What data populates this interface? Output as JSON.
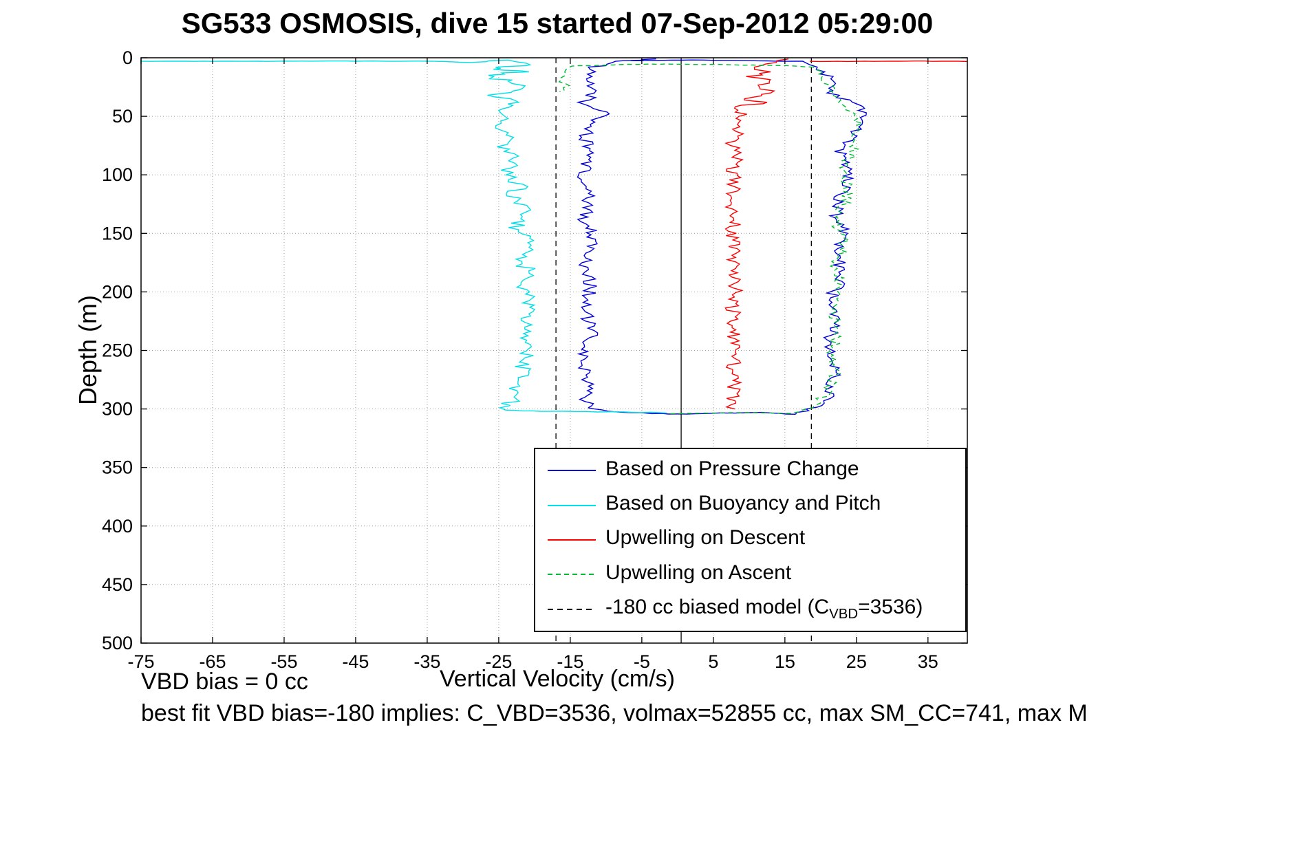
{
  "chart_data": {
    "type": "line",
    "title": "SG533 OSMOSIS, dive 15 started 07-Sep-2012 05:29:00",
    "xlabel": "Vertical Velocity (cm/s)",
    "ylabel": "Depth (m)",
    "xlim": [
      -75,
      40.5
    ],
    "ylim": [
      0,
      500
    ],
    "y_inverted": true,
    "grid": "dotted",
    "x_ticks": [
      -75,
      -65,
      -55,
      -45,
      -35,
      -25,
      -15,
      -5,
      5,
      15,
      25,
      35
    ],
    "y_ticks": [
      0,
      50,
      100,
      150,
      200,
      250,
      300,
      350,
      400,
      450,
      500
    ],
    "legend_position": "bottom-right-inside",
    "annotations": {
      "vbd_bias": "VBD bias = 0 cc",
      "best_fit": "best fit VBD bias=-180 implies: C_VBD=3536, volmax=52855 cc, max SM_CC=741, max M"
    },
    "reference_lines": [
      {
        "name": "zero-velocity-line",
        "x": 0.5,
        "style": "solid",
        "color": "#000000",
        "label": ""
      },
      {
        "name": "biased-model-descent-line",
        "x": -17.0,
        "style": "dashed",
        "color": "#000000",
        "label": "-180 cc biased model (C_VBD=3536)"
      },
      {
        "name": "biased-model-ascent-line",
        "x": 18.7,
        "style": "dashed",
        "color": "#000000",
        "label": "-180 cc biased model (C_VBD=3536)"
      }
    ],
    "series": [
      {
        "id": "pressure",
        "name": "Based on Pressure Change",
        "color": "#0000dd",
        "dash": "",
        "units": "points are [velocity_cm_s, depth_m] control vertices",
        "segments": [
          {
            "noise_v": 1.0,
            "noise_d": 0,
            "points": [
              [
                -3,
                1
              ],
              [
                -8,
                3
              ],
              [
                -12,
                8
              ],
              [
                -13,
                18
              ],
              [
                -11.5,
                30
              ],
              [
                -13.5,
                40
              ],
              [
                -9.5,
                48
              ],
              [
                -12,
                55
              ],
              [
                -13,
                70
              ],
              [
                -12,
                85
              ],
              [
                -13.5,
                100
              ],
              [
                -12.5,
                120
              ],
              [
                -13,
                140
              ],
              [
                -11.5,
                155
              ],
              [
                -13,
                175
              ],
              [
                -12,
                195
              ],
              [
                -13,
                215
              ],
              [
                -12,
                235
              ],
              [
                -13.5,
                255
              ],
              [
                -12.5,
                275
              ],
              [
                -13,
                290
              ],
              [
                -12.5,
                299
              ]
            ]
          },
          {
            "noise_v": 0.3,
            "noise_d": 0.3,
            "points": [
              [
                -12.5,
                299
              ],
              [
                -10,
                302
              ],
              [
                -5,
                303.5
              ],
              [
                0,
                304.3
              ],
              [
                6,
                303.6
              ],
              [
                12,
                303.2
              ],
              [
                16.5,
                304.5
              ]
            ]
          },
          {
            "noise_v": 1.0,
            "noise_d": 0,
            "points": [
              [
                16.5,
                304.5
              ],
              [
                20,
                297
              ],
              [
                21.5,
                285
              ],
              [
                22,
                265
              ],
              [
                21,
                245
              ],
              [
                22.5,
                225
              ],
              [
                21.5,
                205
              ],
              [
                23,
                185
              ],
              [
                22,
                165
              ],
              [
                23.5,
                150
              ],
              [
                22,
                135
              ],
              [
                23,
                115
              ],
              [
                24,
                95
              ],
              [
                22.5,
                80
              ],
              [
                24.5,
                65
              ],
              [
                25,
                55
              ],
              [
                26,
                45
              ],
              [
                24,
                38
              ],
              [
                21.5,
                30
              ],
              [
                22,
                20
              ],
              [
                20.5,
                12
              ],
              [
                18.5,
                6
              ]
            ]
          },
          {
            "noise_v": 0.2,
            "noise_d": 0.15,
            "points": [
              [
                18.5,
                6
              ],
              [
                17.5,
                3
              ],
              [
                10,
                2.5
              ],
              [
                2,
                2
              ],
              [
                -2,
                2.2
              ],
              [
                -6.5,
                2.5
              ]
            ]
          }
        ]
      },
      {
        "id": "buoyancy",
        "name": "Based on Buoyancy and Pitch",
        "color": "#00e0e8",
        "dash": "",
        "segments": [
          {
            "noise_v": 0,
            "noise_d": 0.12,
            "points": [
              [
                -75,
                3
              ],
              [
                -60,
                3
              ],
              [
                -45,
                2.8
              ],
              [
                -34,
                3
              ]
            ]
          },
          {
            "noise_v": 1.3,
            "noise_d": 0,
            "points": [
              [
                -34,
                3
              ],
              [
                -28,
                4
              ],
              [
                -24,
                2
              ],
              [
                -21,
                6
              ],
              [
                -26,
                9
              ],
              [
                -22,
                12
              ],
              [
                -27,
                16
              ],
              [
                -23,
                20
              ],
              [
                -21,
                26
              ],
              [
                -25.5,
                32
              ],
              [
                -22,
                38
              ],
              [
                -26,
                45
              ],
              [
                -23.5,
                52
              ],
              [
                -25,
                60
              ],
              [
                -23,
                68
              ],
              [
                -24.5,
                78
              ],
              [
                -22.5,
                88
              ],
              [
                -24,
                98
              ],
              [
                -22,
                108
              ],
              [
                -23,
                120
              ],
              [
                -21.5,
                132
              ],
              [
                -22.5,
                145
              ],
              [
                -21,
                158
              ],
              [
                -22,
                172
              ],
              [
                -20.5,
                186
              ],
              [
                -21.5,
                200
              ],
              [
                -20.5,
                215
              ],
              [
                -21.5,
                230
              ],
              [
                -20.5,
                245
              ],
              [
                -21.5,
                260
              ],
              [
                -22,
                275
              ],
              [
                -23,
                288
              ],
              [
                -23.5,
                297
              ],
              [
                -24,
                301
              ]
            ]
          },
          {
            "noise_v": 0.2,
            "noise_d": 0.25,
            "points": [
              [
                -24,
                301
              ],
              [
                -18,
                302
              ],
              [
                -10,
                302.5
              ],
              [
                -4,
                303
              ],
              [
                -1.5,
                303.5
              ]
            ]
          }
        ]
      },
      {
        "id": "descent-upwelling",
        "name": "Upwelling on Descent",
        "color": "#ff0000",
        "dash": "",
        "segments": [
          {
            "noise_v": 1.1,
            "noise_d": 0,
            "points": [
              [
                15.5,
                1
              ],
              [
                14,
                4
              ],
              [
                11,
                8
              ],
              [
                12.5,
                12
              ],
              [
                10,
                16
              ],
              [
                13,
                20
              ],
              [
                10.5,
                25
              ],
              [
                13.5,
                30
              ],
              [
                9,
                35
              ],
              [
                12,
                38
              ],
              [
                8,
                43
              ],
              [
                9.5,
                50
              ],
              [
                7.5,
                57
              ],
              [
                8.5,
                65
              ],
              [
                7.5,
                75
              ],
              [
                8.5,
                85
              ],
              [
                7.5,
                95
              ],
              [
                8,
                108
              ],
              [
                7.3,
                120
              ],
              [
                8.2,
                135
              ],
              [
                7.5,
                150
              ],
              [
                8,
                165
              ],
              [
                7.4,
                180
              ],
              [
                8.2,
                195
              ],
              [
                7.5,
                210
              ],
              [
                8,
                225
              ],
              [
                7.5,
                240
              ],
              [
                8.2,
                255
              ],
              [
                7.6,
                270
              ],
              [
                8,
                285
              ],
              [
                7.8,
                295
              ],
              [
                8,
                300
              ]
            ]
          },
          {
            "noise_v": 0,
            "noise_d": 0.2,
            "points": [
              [
                18.5,
                3
              ],
              [
                25,
                3
              ],
              [
                32,
                2.8
              ],
              [
                40.5,
                3.2
              ]
            ]
          }
        ]
      },
      {
        "id": "ascent-upwelling",
        "name": "Upwelling on Ascent",
        "color": "#00bb33",
        "dash": "7 5",
        "segments": [
          {
            "noise_v": 0.9,
            "noise_d": 0,
            "points": [
              [
                -1,
                304
              ],
              [
                4,
                303.5
              ],
              [
                10,
                303
              ],
              [
                15,
                303.8
              ],
              [
                17.5,
                301
              ],
              [
                19.5,
                295
              ],
              [
                21,
                285
              ],
              [
                22,
                268
              ],
              [
                21.5,
                250
              ],
              [
                22.5,
                232
              ],
              [
                21.5,
                214
              ],
              [
                23,
                196
              ],
              [
                22,
                178
              ],
              [
                23.5,
                160
              ],
              [
                22.5,
                144
              ],
              [
                23,
                128
              ],
              [
                24,
                110
              ],
              [
                23,
                96
              ],
              [
                24.5,
                82
              ],
              [
                25,
                68
              ],
              [
                25.5,
                56
              ],
              [
                24.5,
                46
              ],
              [
                22.5,
                38
              ],
              [
                21.5,
                30
              ],
              [
                21,
                22
              ],
              [
                20,
                14
              ],
              [
                19,
                8
              ]
            ]
          },
          {
            "noise_v": 0.5,
            "noise_d": 0.3,
            "points": [
              [
                19,
                8
              ],
              [
                14,
                6.5
              ],
              [
                8,
                6
              ],
              [
                2,
                5.5
              ],
              [
                -4,
                5.5
              ],
              [
                -10,
                6
              ],
              [
                -14.5,
                7
              ],
              [
                -16,
                10
              ],
              [
                -15.5,
                14
              ],
              [
                -16.5,
                19
              ],
              [
                -15.5,
                24
              ],
              [
                -16.5,
                29
              ]
            ]
          }
        ]
      }
    ]
  },
  "legend": {
    "items": [
      {
        "pre": "Based on Pressure Change",
        "sub": "",
        "post": "",
        "color": "#0000dd",
        "dash": ""
      },
      {
        "pre": "Based on Buoyancy and Pitch",
        "sub": "",
        "post": "",
        "color": "#00e0e8",
        "dash": ""
      },
      {
        "pre": "Upwelling on Descent",
        "sub": "",
        "post": "",
        "color": "#ff0000",
        "dash": ""
      },
      {
        "pre": "Upwelling on Ascent",
        "sub": "",
        "post": "",
        "color": "#00bb33",
        "dash": "7 5"
      },
      {
        "pre": "-180 cc biased model (C",
        "sub": "VBD",
        "post": "=3536)",
        "color": "#000000",
        "dash": "8 6"
      }
    ]
  }
}
